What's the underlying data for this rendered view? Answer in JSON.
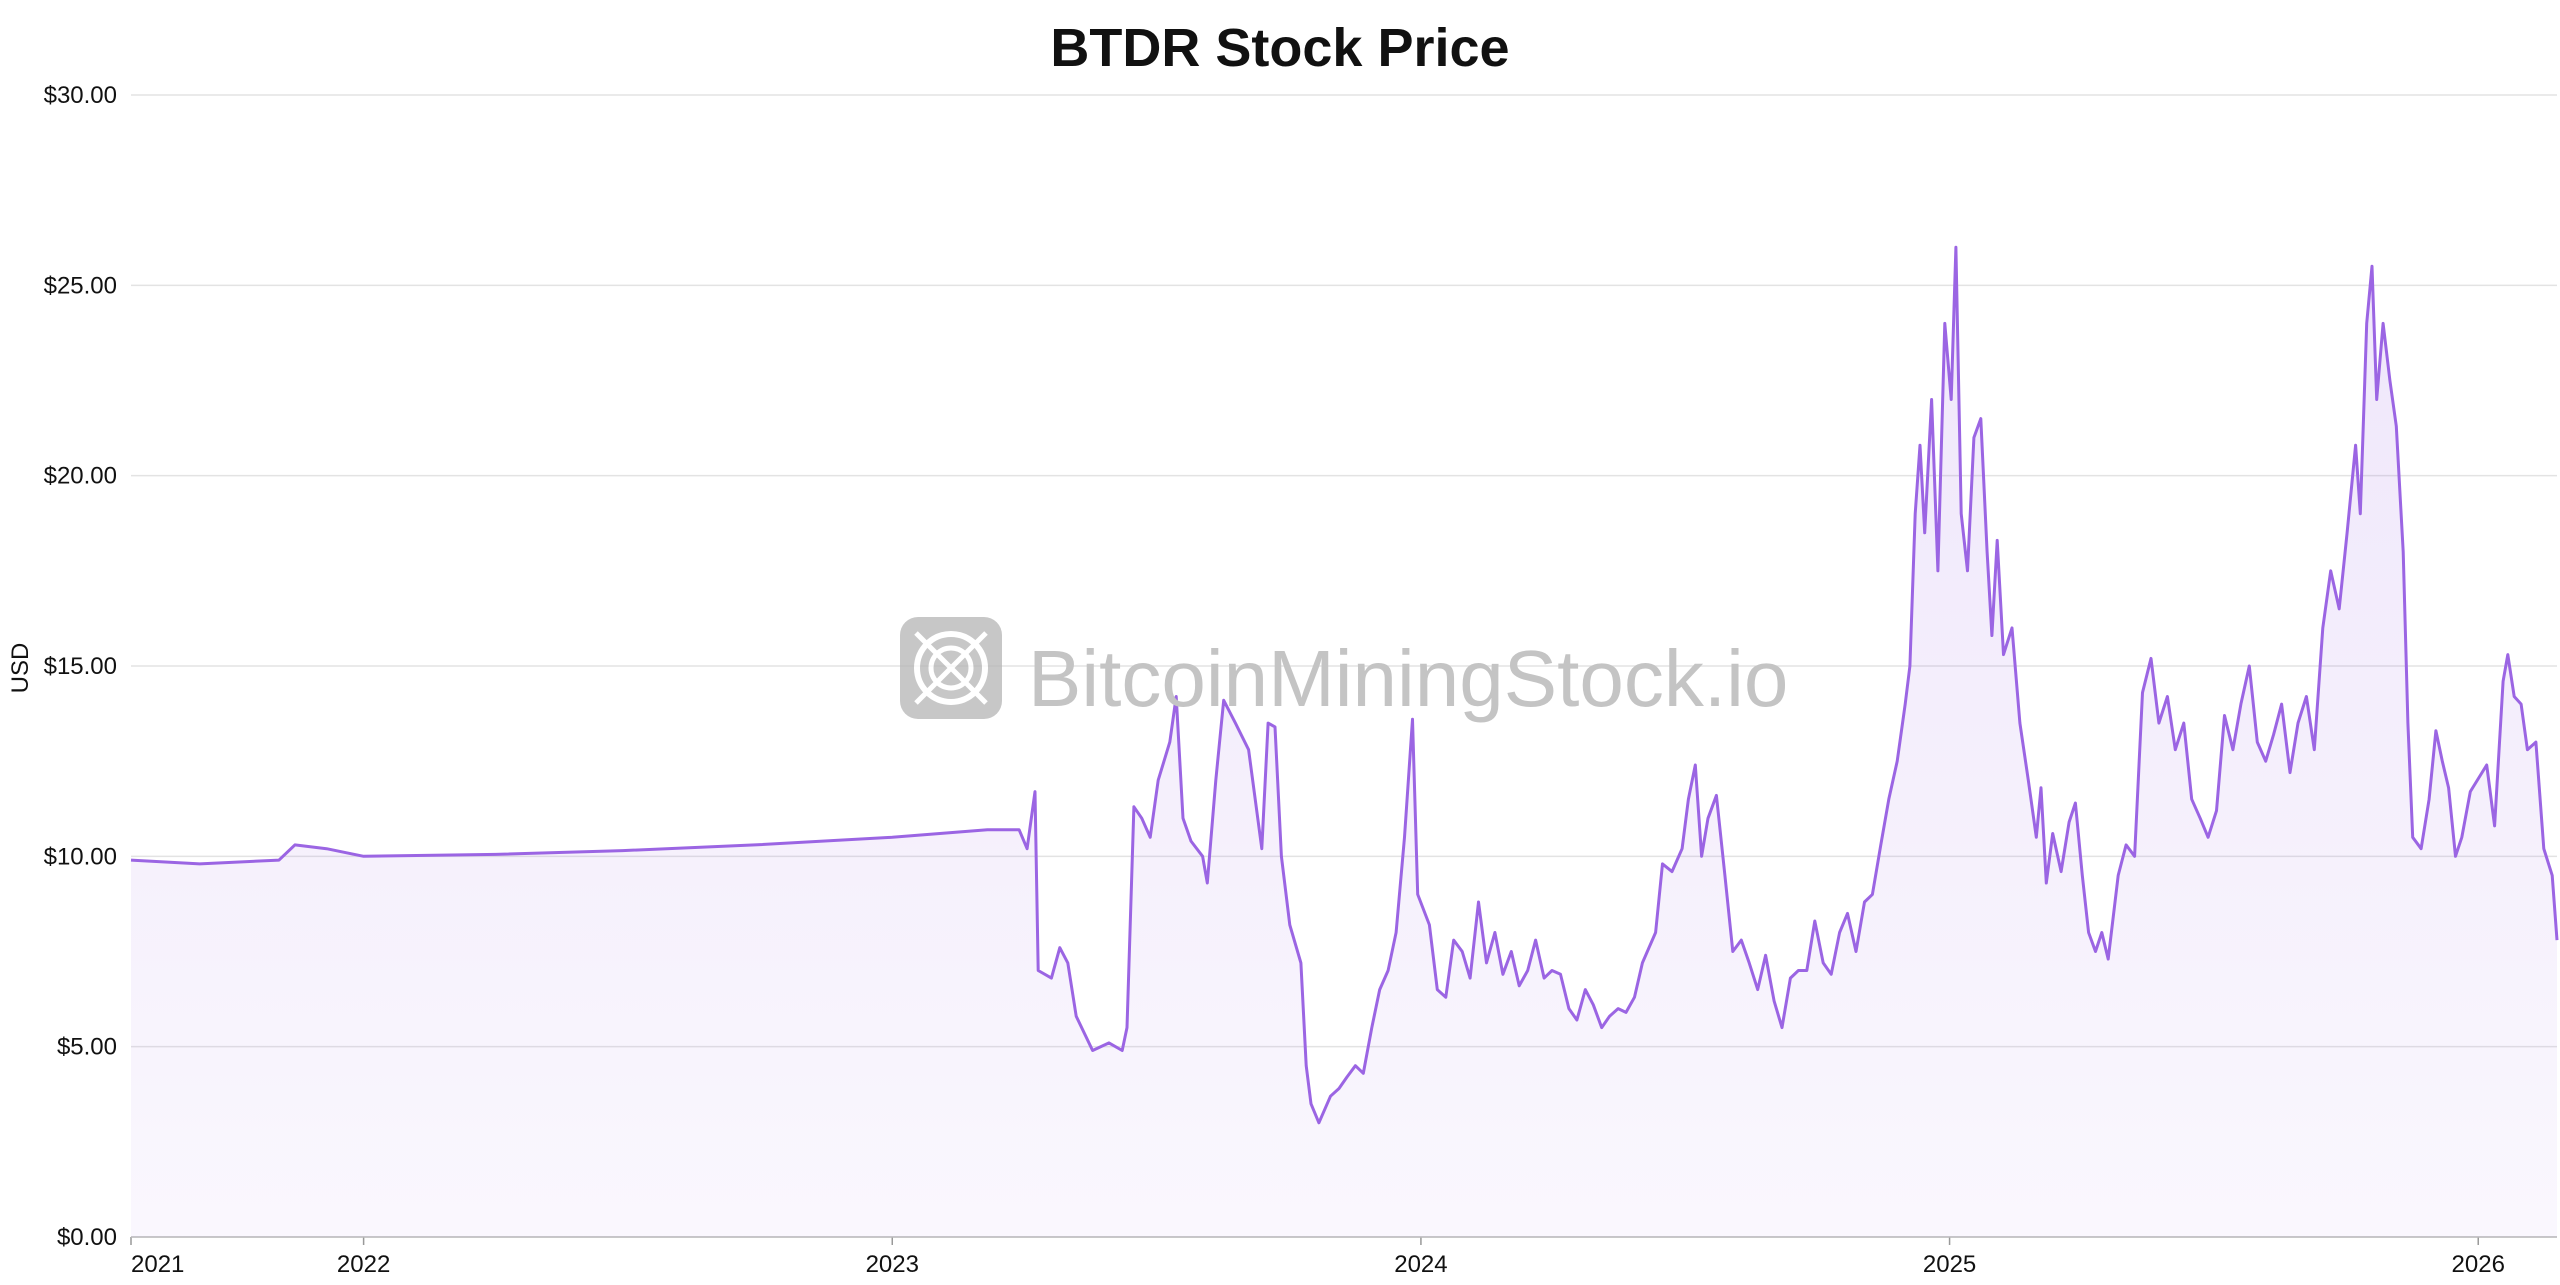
{
  "chart_data": {
    "type": "area",
    "title": "BTDR Stock Price",
    "y_label": "USD",
    "watermark": "BitcoinMiningStock.io",
    "series": [
      {
        "name": "BTDR",
        "color": "#9b65e3",
        "x": [
          2021.56,
          2021.69,
          2021.84,
          2021.87,
          2021.93,
          2022.0,
          2022.25,
          2022.49,
          2022.74,
          2023.0,
          2023.18,
          2023.24,
          2023.255,
          2023.27,
          2023.276,
          2023.301,
          2023.317,
          2023.332,
          2023.348,
          2023.379,
          2023.41,
          2023.435,
          2023.444,
          2023.457,
          2023.472,
          2023.488,
          2023.503,
          2023.525,
          2023.537,
          2023.55,
          2023.565,
          2023.587,
          2023.596,
          2023.612,
          2023.627,
          2023.649,
          2023.674,
          2023.699,
          2023.711,
          2023.724,
          2023.736,
          2023.752,
          2023.773,
          2023.783,
          2023.792,
          2023.807,
          2023.829,
          2023.845,
          2023.86,
          2023.876,
          2023.891,
          2023.907,
          2023.922,
          2023.938,
          2023.953,
          2023.969,
          2023.984,
          2023.994,
          2024.016,
          2024.031,
          2024.047,
          2024.062,
          2024.078,
          2024.093,
          2024.109,
          2024.124,
          2024.14,
          2024.155,
          2024.171,
          2024.186,
          2024.202,
          2024.217,
          2024.233,
          2024.248,
          2024.264,
          2024.28,
          2024.295,
          2024.311,
          2024.326,
          2024.342,
          2024.357,
          2024.373,
          2024.388,
          2024.404,
          2024.419,
          2024.444,
          2024.457,
          2024.475,
          2024.494,
          2024.506,
          2024.519,
          2024.531,
          2024.543,
          2024.559,
          2024.575,
          2024.59,
          2024.606,
          2024.621,
          2024.637,
          2024.652,
          2024.668,
          2024.683,
          2024.699,
          2024.714,
          2024.73,
          2024.745,
          2024.761,
          2024.776,
          2024.792,
          2024.807,
          2024.823,
          2024.839,
          2024.854,
          2024.87,
          2024.885,
          2024.901,
          2024.916,
          2024.925,
          2024.935,
          2024.944,
          2024.953,
          2024.966,
          2024.978,
          2024.991,
          2025.003,
          2025.012,
          2025.022,
          2025.034,
          2025.046,
          2025.059,
          2025.071,
          2025.08,
          2025.09,
          2025.102,
          2025.118,
          2025.133,
          2025.149,
          2025.164,
          2025.173,
          2025.183,
          2025.195,
          2025.211,
          2025.226,
          2025.238,
          2025.251,
          2025.263,
          2025.276,
          2025.288,
          2025.3,
          2025.319,
          2025.334,
          2025.35,
          2025.365,
          2025.381,
          2025.396,
          2025.412,
          2025.427,
          2025.443,
          2025.458,
          2025.474,
          2025.489,
          2025.505,
          2025.52,
          2025.536,
          2025.551,
          2025.567,
          2025.582,
          2025.598,
          2025.613,
          2025.628,
          2025.644,
          2025.659,
          2025.675,
          2025.69,
          2025.706,
          2025.721,
          2025.737,
          2025.752,
          2025.768,
          2025.777,
          2025.789,
          2025.799,
          2025.808,
          2025.82,
          2025.833,
          2025.845,
          2025.858,
          2025.867,
          2025.876,
          2025.892,
          2025.907,
          2025.92,
          2025.932,
          2025.944,
          2025.957,
          2025.969,
          2025.985,
          2026.016,
          2026.031,
          2026.047,
          2026.056,
          2026.068,
          2026.081,
          2026.093,
          2026.109,
          2026.124,
          2026.14,
          2026.149
        ],
        "values": [
          9.9,
          9.8,
          9.9,
          10.3,
          10.2,
          10.0,
          10.05,
          10.15,
          10.3,
          10.5,
          10.7,
          10.7,
          10.2,
          11.7,
          7.0,
          6.8,
          7.6,
          7.2,
          5.8,
          4.9,
          5.1,
          4.9,
          5.5,
          11.3,
          11.0,
          10.5,
          12.0,
          13.0,
          14.2,
          11.0,
          10.4,
          10.0,
          9.3,
          12.0,
          14.1,
          13.5,
          12.8,
          10.2,
          13.5,
          13.4,
          10.0,
          8.2,
          7.2,
          4.5,
          3.5,
          3.0,
          3.7,
          3.9,
          4.2,
          4.5,
          4.3,
          5.5,
          6.5,
          7.0,
          8.0,
          10.5,
          13.6,
          9.0,
          8.2,
          6.5,
          6.3,
          7.8,
          7.5,
          6.8,
          8.8,
          7.2,
          8.0,
          6.9,
          7.5,
          6.6,
          7.0,
          7.8,
          6.8,
          7.0,
          6.9,
          6.0,
          5.7,
          6.5,
          6.1,
          5.5,
          5.8,
          6.0,
          5.9,
          6.3,
          7.2,
          8.0,
          9.8,
          9.6,
          10.2,
          11.5,
          12.4,
          10.0,
          11.0,
          11.6,
          9.5,
          7.5,
          7.8,
          7.2,
          6.5,
          7.4,
          6.2,
          5.5,
          6.8,
          7.0,
          7.0,
          8.3,
          7.2,
          6.9,
          8.0,
          8.5,
          7.5,
          8.8,
          9.0,
          10.3,
          11.5,
          12.5,
          14.0,
          15.0,
          19.0,
          20.8,
          18.5,
          22.0,
          17.5,
          24.0,
          22.0,
          26.0,
          19.0,
          17.5,
          21.0,
          21.5,
          18.0,
          15.8,
          18.3,
          15.3,
          16.0,
          13.5,
          12.0,
          10.5,
          11.8,
          9.3,
          10.6,
          9.6,
          10.9,
          11.4,
          9.5,
          8.0,
          7.5,
          8.0,
          7.3,
          9.5,
          10.3,
          10.0,
          14.3,
          15.2,
          13.5,
          14.2,
          12.8,
          13.5,
          11.5,
          11.0,
          10.5,
          11.2,
          13.7,
          12.8,
          14.0,
          15.0,
          13.0,
          12.5,
          13.2,
          14.0,
          12.2,
          13.5,
          14.2,
          12.8,
          16.0,
          17.5,
          16.5,
          18.5,
          20.8,
          19.0,
          24.0,
          25.5,
          22.0,
          24.0,
          22.5,
          21.3,
          18.0,
          13.5,
          10.5,
          10.2,
          11.5,
          13.3,
          12.5,
          11.8,
          10.0,
          10.5,
          11.7,
          12.4,
          10.8,
          14.6,
          15.3,
          14.2,
          14.0,
          12.8,
          13.0,
          10.2,
          9.5,
          7.8
        ]
      }
    ],
    "xlim": [
      2021.56,
      2026.149
    ],
    "xticks": [
      {
        "value": 2021.56,
        "label": "2021"
      },
      2022,
      2023,
      2024,
      2025,
      2026
    ],
    "ylim": [
      0,
      30
    ],
    "yticks": [
      {
        "value": 0,
        "label": "$0.00"
      },
      {
        "value": 5,
        "label": "$5.00"
      },
      {
        "value": 10,
        "label": "$10.00"
      },
      {
        "value": 15,
        "label": "$15.00"
      },
      {
        "value": 20,
        "label": "$20.00"
      },
      {
        "value": 25,
        "label": "$25.00"
      },
      {
        "value": 30,
        "label": "$30.00"
      }
    ],
    "grid": true
  }
}
